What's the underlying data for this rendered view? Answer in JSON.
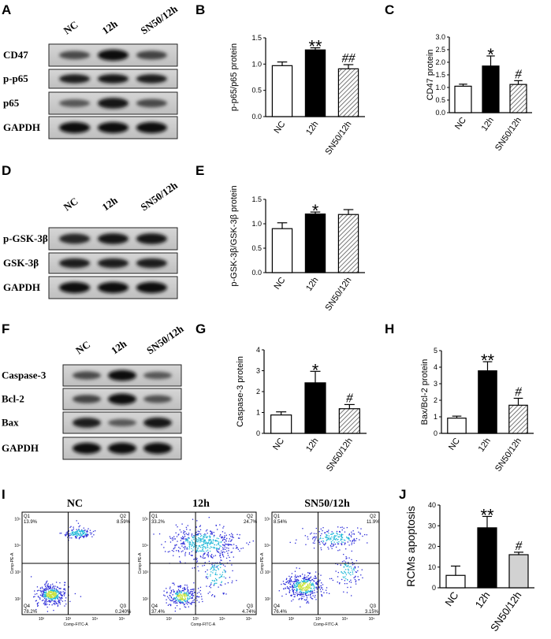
{
  "panel_labels": {
    "A": "A",
    "B": "B",
    "C": "C",
    "D": "D",
    "E": "E",
    "F": "F",
    "G": "G",
    "H": "H",
    "I": "I",
    "J": "J"
  },
  "groups": [
    "NC",
    "12h",
    "SN50/12h"
  ],
  "western_blots": {
    "A": {
      "rows": [
        "CD47",
        "p-p65",
        "p65",
        "GAPDH"
      ],
      "intensity": [
        [
          0.55,
          0.95,
          0.6
        ],
        [
          0.85,
          0.9,
          0.85
        ],
        [
          0.45,
          0.9,
          0.55
        ],
        [
          0.95,
          0.95,
          0.95
        ]
      ]
    },
    "D": {
      "rows": [
        "p-GSK-3β",
        "GSK-3β",
        "GAPDH"
      ],
      "intensity": [
        [
          0.8,
          0.9,
          0.9
        ],
        [
          0.85,
          0.85,
          0.85
        ],
        [
          0.95,
          0.95,
          0.95
        ]
      ]
    },
    "F": {
      "rows": [
        "Caspase-3",
        "Bcl-2",
        "Bax",
        "GAPDH"
      ],
      "intensity": [
        [
          0.55,
          0.95,
          0.45
        ],
        [
          0.6,
          0.98,
          0.5
        ],
        [
          0.85,
          0.45,
          0.9
        ],
        [
          0.95,
          0.95,
          0.95
        ]
      ]
    }
  },
  "flow_cytometry": {
    "x_axis": "Comp-FITC-A",
    "y_axis": "Comp-PE-A",
    "panels": [
      {
        "title": "NC",
        "q1": "Q1",
        "q2": "Q2",
        "q3": "Q3",
        "q4": "Q4",
        "v1": "13.9%",
        "v2": "8.59%",
        "v3": "0.240%",
        "v4": "78.2%"
      },
      {
        "title": "12h",
        "q1": "Q1",
        "q2": "Q2",
        "q3": "Q3",
        "q4": "Q4",
        "v1": "33.2%",
        "v2": "24.7%",
        "v3": "4.74%",
        "v4": "37.4%"
      },
      {
        "title": "SN50/12h",
        "q1": "Q1",
        "q2": "Q2",
        "q3": "Q3",
        "q4": "Q4",
        "v1": "8.54%",
        "v2": "11.9%",
        "v3": "3.15%",
        "v4": "76.4%"
      }
    ],
    "tick_labels": [
      "10²",
      "10³",
      "10⁴",
      "10⁵"
    ],
    "colors": {
      "density_low": "#2a2ad8",
      "density_mid": "#22b8d8",
      "density_high": "#c8e23a"
    }
  },
  "chart_data": [
    {
      "id": "B",
      "type": "bar",
      "categories": [
        "NC",
        "12h",
        "SN50/12h"
      ],
      "values": [
        0.97,
        1.27,
        0.91
      ],
      "errors": [
        0.07,
        0.04,
        0.08
      ],
      "ylabel": "p-p65/p65 protein",
      "ylim": [
        0,
        1.5
      ],
      "yticks": [
        "0.0",
        "0.5",
        "1.0",
        "1.5"
      ],
      "annotations": [
        "",
        "**",
        "##"
      ]
    },
    {
      "id": "C",
      "type": "bar",
      "categories": [
        "NC",
        "12h",
        "SN50/12h"
      ],
      "values": [
        1.05,
        1.85,
        1.12
      ],
      "errors": [
        0.08,
        0.4,
        0.15
      ],
      "ylabel": "CD47 protein",
      "ylim": [
        0,
        3.0
      ],
      "yticks": [
        "0.0",
        "0.5",
        "1.0",
        "1.5",
        "2.0",
        "2.5",
        "3.0"
      ],
      "annotations": [
        "",
        "*",
        "#"
      ]
    },
    {
      "id": "E",
      "type": "bar",
      "categories": [
        "NC",
        "12h",
        "SN50/12h"
      ],
      "values": [
        0.9,
        1.2,
        1.19
      ],
      "errors": [
        0.12,
        0.04,
        0.1
      ],
      "ylabel": "p-GSK-3β/GSK-3β protein",
      "ylim": [
        0,
        1.5
      ],
      "yticks": [
        "0.0",
        "0.5",
        "1.0",
        "1.5"
      ],
      "annotations": [
        "",
        "*",
        ""
      ]
    },
    {
      "id": "G",
      "type": "bar",
      "categories": [
        "NC",
        "12h",
        "SN50/12h"
      ],
      "values": [
        0.88,
        2.42,
        1.18
      ],
      "errors": [
        0.15,
        0.55,
        0.2
      ],
      "ylabel": "Caspase-3 protein",
      "ylim": [
        0,
        4
      ],
      "yticks": [
        "0",
        "1",
        "2",
        "3",
        "4"
      ],
      "annotations": [
        "",
        "*",
        "#"
      ]
    },
    {
      "id": "H",
      "type": "bar",
      "categories": [
        "NC",
        "12h",
        "SN50/12h"
      ],
      "values": [
        0.92,
        3.78,
        1.7
      ],
      "errors": [
        0.12,
        0.55,
        0.42
      ],
      "ylabel": "Bax/Bcl-2 protein",
      "ylim": [
        0,
        5
      ],
      "yticks": [
        "0",
        "1",
        "2",
        "3",
        "4",
        "5"
      ],
      "annotations": [
        "",
        "**",
        "#"
      ]
    },
    {
      "id": "J",
      "type": "bar",
      "categories": [
        "NC",
        "12h",
        "SN50/12h"
      ],
      "values": [
        6,
        29,
        16
      ],
      "errors": [
        4.5,
        5.5,
        1.2
      ],
      "ylabel": "RCMs apoptosis",
      "ylim": [
        0,
        40
      ],
      "yticks": [
        "0",
        "10",
        "20",
        "30",
        "40"
      ],
      "annotations": [
        "",
        "**",
        "#"
      ]
    }
  ]
}
